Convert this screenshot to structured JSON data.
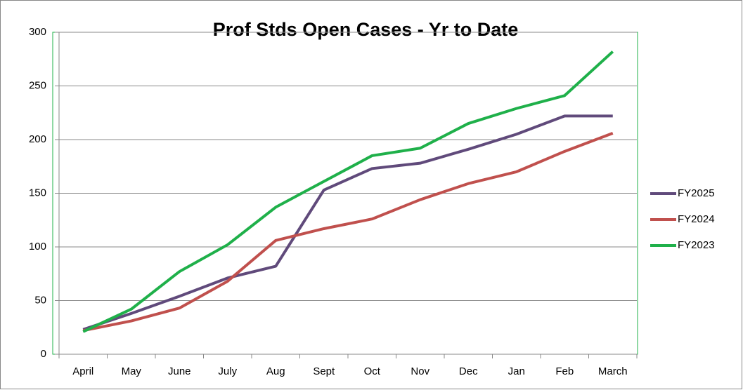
{
  "chart_data": {
    "type": "line",
    "title": "Prof Stds Open Cases - Yr to Date",
    "categories": [
      "April",
      "May",
      "June",
      "July",
      "Aug",
      "Sept",
      "Oct",
      "Nov",
      "Dec",
      "Jan",
      "Feb",
      "March"
    ],
    "series": [
      {
        "name": "FY2025",
        "color": "#604a7b",
        "values": [
          23,
          38,
          54,
          71,
          82,
          153,
          173,
          178,
          191,
          205,
          222,
          222
        ]
      },
      {
        "name": "FY2024",
        "color": "#c0504d",
        "values": [
          22,
          31,
          43,
          68,
          106,
          117,
          126,
          144,
          159,
          170,
          189,
          206
        ]
      },
      {
        "name": "FY2023",
        "color": "#1fb04a",
        "values": [
          21,
          42,
          77,
          102,
          137,
          161,
          185,
          192,
          215,
          229,
          241,
          282
        ]
      }
    ],
    "ylim": [
      0,
      300
    ],
    "yticks": [
      0,
      50,
      100,
      150,
      200,
      250,
      300
    ],
    "grid": true,
    "legend": "right"
  }
}
